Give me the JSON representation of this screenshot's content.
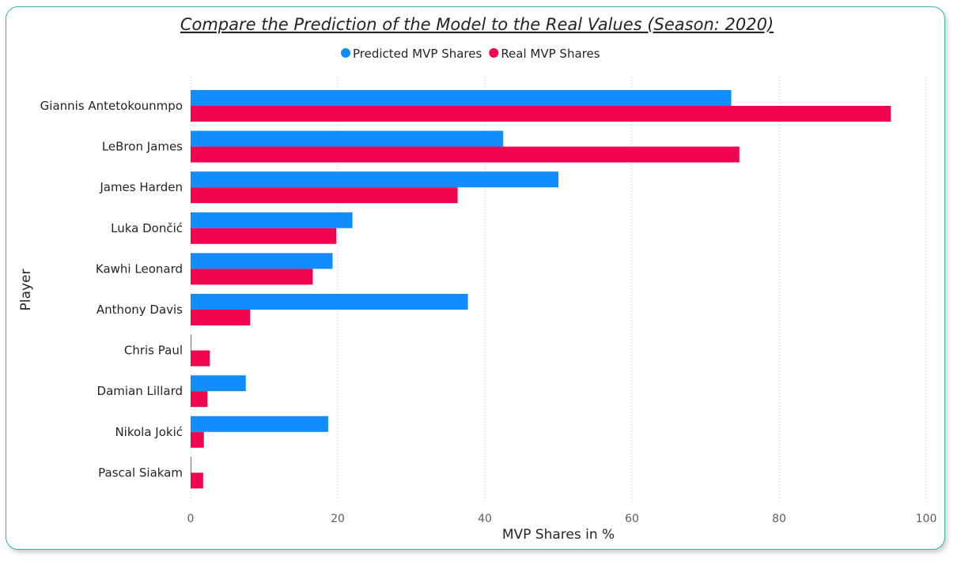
{
  "chart_data": {
    "type": "bar",
    "orientation": "horizontal",
    "title": "Compare the Prediction of the Model to the Real Values (Season: 2020)",
    "xlabel": "MVP Shares in %",
    "ylabel": "Player",
    "xlim": [
      0,
      100
    ],
    "xticks": [
      0,
      20,
      40,
      60,
      80,
      100
    ],
    "grid": true,
    "legend": "top-center",
    "categories": [
      "Giannis Antetokounmpo",
      "LeBron James",
      "James Harden",
      "Luka Dončić",
      "Kawhi Leonard",
      "Anthony Davis",
      "Chris Paul",
      "Damian Lillard",
      "Nikola Jokić",
      "Pascal Siakam"
    ],
    "series": [
      {
        "name": "Predicted MVP Shares",
        "color": "#118dff",
        "values": [
          73.5,
          42.5,
          50,
          22,
          19.3,
          37.7,
          0.1,
          7.5,
          18.7,
          0.1
        ]
      },
      {
        "name": "Real MVP Shares",
        "color": "#f0044f",
        "values": [
          95.2,
          74.6,
          36.3,
          19.8,
          16.6,
          8.1,
          2.6,
          2.3,
          1.8,
          1.7
        ]
      }
    ]
  }
}
